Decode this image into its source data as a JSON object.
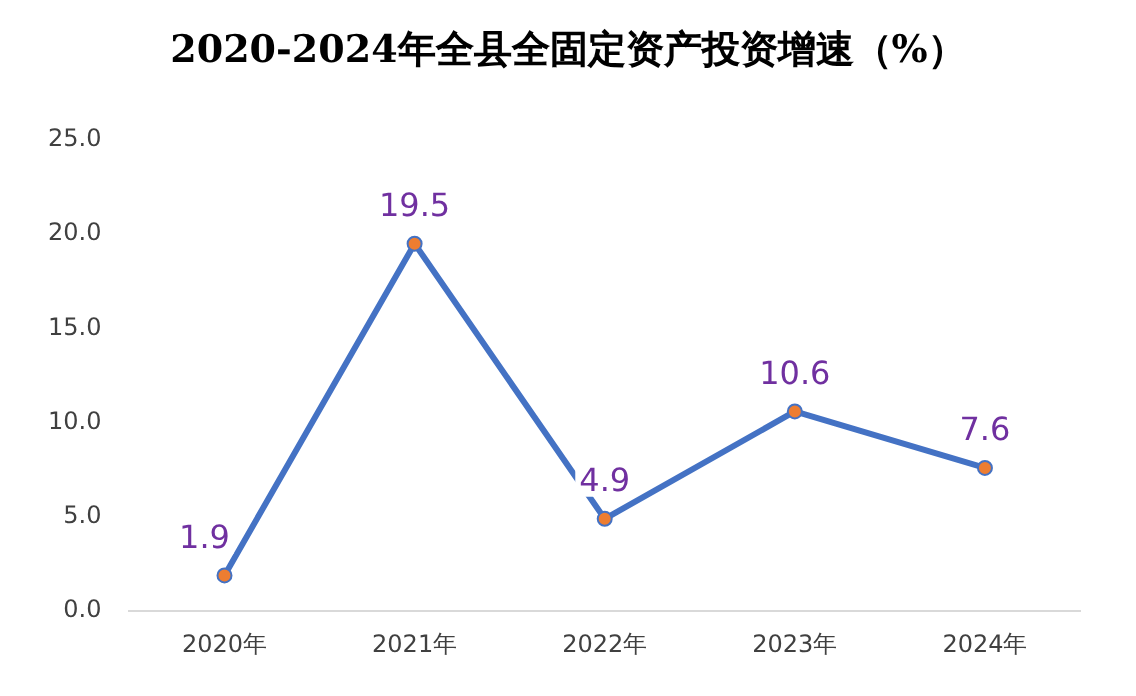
{
  "chart_data": {
    "type": "line",
    "title": "2020-2024年全县全固定资产投资增速（%）",
    "categories": [
      "2020年",
      "2021年",
      "2022年",
      "2023年",
      "2024年"
    ],
    "series": [
      {
        "color": "#4472c4",
        "colors": [
          "#ed7d31",
          "#ed7d31",
          "#ed7d31",
          "#ed7d31",
          "#ed7d31"
        ],
        "values": [
          1.9,
          19.5,
          4.9,
          10.6,
          7.6
        ]
      }
    ],
    "ylim": [
      0,
      25
    ],
    "yticks": [
      {
        "value": 0,
        "label": "0.0"
      },
      {
        "value": 5,
        "label": "5.0"
      },
      {
        "value": 10,
        "label": "10.0"
      },
      {
        "value": 15,
        "label": "15.0"
      },
      {
        "value": 20,
        "label": "20.0"
      },
      {
        "value": 25,
        "label": "25.0"
      }
    ],
    "grid": false,
    "legend": false,
    "marker": "circle",
    "data_labels": true
  }
}
